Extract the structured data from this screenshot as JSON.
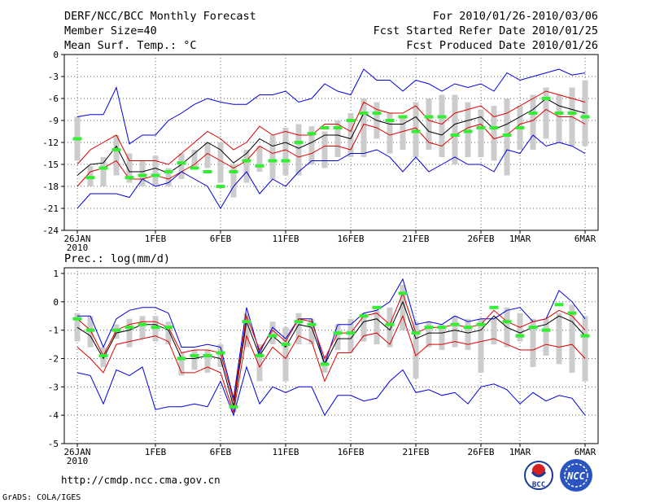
{
  "header": {
    "title": "DERF/NCC/BCC Monthly Forecast",
    "member_size": "Member Size=40",
    "variable": "Mean Surf. Temp.: °C",
    "period": "For 2010/01/26-2010/03/06",
    "started": "Fcst Started Refer Date 2010/01/25",
    "produced": "Fcst Produced Date 2010/01/26"
  },
  "precip_label": "Prec.: log(mm/d)",
  "footer": {
    "url": "http://cmdp.ncc.cma.gov.cn",
    "grads": "GrADS: COLA/IGES",
    "logo_bcc": "BCC",
    "logo_ncc": "NCC"
  },
  "colors": {
    "envelope": "#0000dd",
    "spread": "#dd0000",
    "mean": "#000000",
    "box": "#cccccc",
    "median": "#33ee33"
  },
  "x_axis": {
    "tick_labels": [
      "26JAN",
      "1FEB",
      "6FEB",
      "11FEB",
      "16FEB",
      "21FEB",
      "26FEB",
      "1MAR",
      "6MAR"
    ],
    "tick_days": [
      0,
      6,
      11,
      16,
      21,
      26,
      31,
      34,
      39
    ],
    "year_label": "2010"
  },
  "chart_data": [
    {
      "type": "line",
      "title": "Mean Surf. Temp.: °C",
      "x_days": 40,
      "ylim": [
        -24,
        0
      ],
      "yticks": [
        0,
        -3,
        -6,
        -9,
        -12,
        -15,
        -18,
        -21,
        -24
      ],
      "series": [
        {
          "name": "max",
          "values": [
            -8.5,
            -8.2,
            -8.2,
            -4.5,
            -12.2,
            -11,
            -11,
            -9,
            -8,
            -6.8,
            -6,
            -6.5,
            -6.8,
            -6.8,
            -5.5,
            -5.5,
            -5,
            -6.5,
            -6,
            -4,
            -5,
            -5.5,
            -2,
            -3.5,
            -3.5,
            -5,
            -3.5,
            -4,
            -5,
            -4,
            -4.5,
            -4,
            -5,
            -2.5,
            -3.5,
            -3,
            -2.5,
            -2,
            -2.8,
            -2.5
          ]
        },
        {
          "name": "upper",
          "values": [
            -15,
            -13,
            -12,
            -11,
            -14.5,
            -14.5,
            -14.5,
            -15,
            -13.5,
            -12,
            -10.5,
            -11.5,
            -13,
            -12,
            -9.8,
            -11,
            -10.5,
            -11,
            -11,
            -9.5,
            -9.5,
            -10.5,
            -6.5,
            -7.5,
            -8,
            -8,
            -7,
            -9,
            -9.5,
            -8,
            -7.5,
            -7,
            -8.5,
            -8,
            -7,
            -6,
            -5,
            -5.5,
            -6,
            -6.5
          ]
        },
        {
          "name": "mean",
          "values": [
            -16.5,
            -15,
            -14.8,
            -12.5,
            -16,
            -16,
            -15.5,
            -16.2,
            -15,
            -13.5,
            -12,
            -13,
            -14.8,
            -13.5,
            -11.5,
            -12.5,
            -12,
            -12.8,
            -12,
            -11,
            -11,
            -11.5,
            -8,
            -9,
            -9.5,
            -9.5,
            -8.5,
            -10.5,
            -11,
            -9.5,
            -9,
            -8.5,
            -10.2,
            -9.5,
            -8.5,
            -7.5,
            -6,
            -7,
            -7.5,
            -8
          ]
        },
        {
          "name": "lower",
          "values": [
            -18,
            -16,
            -15.5,
            -14.5,
            -17,
            -17,
            -16.5,
            -17,
            -16,
            -15,
            -13.5,
            -14.5,
            -15.5,
            -14.5,
            -12.5,
            -13.5,
            -13,
            -14,
            -13.5,
            -12.5,
            -12.5,
            -13,
            -9.5,
            -10,
            -11,
            -10.5,
            -10,
            -12,
            -12.5,
            -11,
            -10,
            -9.5,
            -11.5,
            -11,
            -9.5,
            -9,
            -7.5,
            -8.5,
            -8.5,
            -9.5
          ]
        },
        {
          "name": "min",
          "values": [
            -21,
            -19,
            -19,
            -19,
            -19.5,
            -17,
            -18,
            -17.5,
            -16,
            -17,
            -18,
            -21,
            -18,
            -16,
            -19,
            -17,
            -18,
            -16,
            -14.5,
            -14.5,
            -14.5,
            -13.5,
            -13.5,
            -13,
            -14,
            -16,
            -14,
            -16,
            -15,
            -14,
            -15,
            -15,
            -16,
            -13,
            -13.5,
            -11,
            -12.5,
            -12,
            -12.5,
            -13.5
          ]
        }
      ],
      "box_ranges": [
        [
          -8.5,
          -14.5
        ],
        [
          -15.2,
          -18
        ],
        [
          -14,
          -18
        ],
        [
          -11,
          -16.5
        ],
        [
          -13.5,
          -17.5
        ],
        [
          -14.5,
          -18
        ],
        [
          -13.8,
          -18
        ],
        [
          -15.5,
          -18
        ],
        [
          -13.5,
          -17
        ],
        [
          -13,
          -15.5
        ],
        [
          -12,
          -15.5
        ],
        [
          -12,
          -17.5
        ],
        [
          -15,
          -19.5
        ],
        [
          -13,
          -17.5
        ],
        [
          -12.5,
          -16
        ],
        [
          -11,
          -17
        ],
        [
          -10,
          -16.5
        ],
        [
          -9.5,
          -16.5
        ],
        [
          -9.8,
          -15
        ],
        [
          -10.5,
          -15.5
        ],
        [
          -9,
          -14
        ],
        [
          -8,
          -14
        ],
        [
          -6,
          -14
        ],
        [
          -6.5,
          -11.5
        ],
        [
          -8,
          -13.5
        ],
        [
          -8.5,
          -13
        ],
        [
          -6.5,
          -14
        ],
        [
          -6,
          -13
        ],
        [
          -5.5,
          -14
        ],
        [
          -5.5,
          -15
        ],
        [
          -6.5,
          -14
        ],
        [
          -7.5,
          -14
        ],
        [
          -7,
          -14.5
        ],
        [
          -6,
          -16.5
        ],
        [
          -7,
          -13
        ],
        [
          -5.5,
          -13
        ],
        [
          -4.5,
          -11.5
        ],
        [
          -5.5,
          -12
        ],
        [
          -4.5,
          -12.5
        ],
        [
          -3.5,
          -12.5
        ]
      ],
      "medians": [
        -11.5,
        -16.8,
        -15.5,
        -13,
        -16.8,
        -16.5,
        -16.5,
        -16,
        -14.8,
        -15.5,
        -16,
        -18,
        -16,
        -14.5,
        -15.2,
        -14.5,
        -14.5,
        -12,
        -10.8,
        -10,
        -10,
        -9,
        -8,
        -8,
        -9,
        -8.5,
        -10.5,
        -8.5,
        -8.5,
        -11,
        -10.5,
        -10,
        -10,
        -11,
        -10,
        -8,
        -6,
        -8,
        -8,
        -8.5
      ]
    },
    {
      "type": "line",
      "title": "Prec.: log(mm/d)",
      "x_days": 40,
      "ylim": [
        -5,
        1.2
      ],
      "yticks": [
        1,
        0,
        -1,
        -2,
        -3,
        -4,
        -5
      ],
      "series": [
        {
          "name": "max",
          "values": [
            -0.5,
            -0.5,
            -1.6,
            -0.6,
            -0.3,
            -0.2,
            -0.2,
            -0.4,
            -1.6,
            -1.6,
            -1.5,
            -1.6,
            -3.4,
            -0.2,
            -1.8,
            -0.9,
            -1.3,
            -0.6,
            -0.6,
            -2.2,
            -0.8,
            -0.8,
            -0.4,
            -0.3,
            0.0,
            0.8,
            -0.8,
            -0.7,
            -0.8,
            -0.5,
            -0.7,
            -0.6,
            -0.6,
            -0.3,
            -0.2,
            -0.7,
            -0.6,
            0.4,
            0.0,
            -0.6
          ]
        },
        {
          "name": "upper",
          "values": [
            -0.6,
            -1.0,
            -1.9,
            -1.0,
            -0.8,
            -0.7,
            -0.7,
            -0.9,
            -1.8,
            -1.7,
            -1.7,
            -1.8,
            -3.5,
            -0.5,
            -1.7,
            -1.0,
            -1.4,
            -0.6,
            -0.7,
            -2.0,
            -1.1,
            -1.1,
            -0.5,
            -0.4,
            -0.8,
            0.3,
            -1.1,
            -0.9,
            -0.9,
            -0.8,
            -0.9,
            -0.8,
            -0.3,
            -0.7,
            -0.9,
            -0.7,
            -0.6,
            -0.3,
            -0.5,
            -1.0
          ]
        },
        {
          "name": "mean",
          "values": [
            -0.9,
            -1.2,
            -2.0,
            -1.1,
            -1.0,
            -0.8,
            -0.8,
            -1.0,
            -2.0,
            -2.0,
            -1.9,
            -2.0,
            -3.7,
            -0.7,
            -1.9,
            -1.2,
            -1.6,
            -0.8,
            -0.9,
            -2.2,
            -1.3,
            -1.3,
            -0.7,
            -0.6,
            -1.0,
            0.0,
            -1.3,
            -1.1,
            -1.1,
            -1.0,
            -1.1,
            -1.0,
            -0.5,
            -0.9,
            -1.1,
            -0.9,
            -0.8,
            -0.5,
            -0.7,
            -1.2
          ]
        },
        {
          "name": "lower",
          "values": [
            -1.6,
            -2.0,
            -2.5,
            -1.5,
            -1.4,
            -1.3,
            -1.2,
            -1.4,
            -2.5,
            -2.5,
            -2.3,
            -2.5,
            -3.9,
            -1.2,
            -2.3,
            -1.6,
            -2.0,
            -1.2,
            -1.4,
            -2.8,
            -1.8,
            -1.8,
            -1.2,
            -1.1,
            -1.5,
            -0.5,
            -1.9,
            -1.5,
            -1.5,
            -1.4,
            -1.5,
            -1.4,
            -1.3,
            -1.5,
            -1.7,
            -1.7,
            -1.5,
            -1.6,
            -1.5,
            -2.0
          ]
        },
        {
          "name": "min",
          "values": [
            -2.5,
            -2.6,
            -3.6,
            -2.4,
            -2.6,
            -2.3,
            -3.8,
            -3.7,
            -3.7,
            -3.6,
            -3.7,
            -2.8,
            -4.0,
            -2.3,
            -3.6,
            -3.0,
            -3.2,
            -3.0,
            -3.0,
            -4.0,
            -3.3,
            -3.3,
            -3.5,
            -3.4,
            -2.8,
            -2.4,
            -3.2,
            -3.1,
            -3.3,
            -3.2,
            -3.6,
            -3.0,
            -2.9,
            -3.1,
            -3.6,
            -3.2,
            -3.5,
            -3.3,
            -3.4,
            -4.0
          ]
        }
      ],
      "box_ranges": [
        [
          -0.4,
          -1.4
        ],
        [
          -0.5,
          -1.6
        ],
        [
          -1.6,
          -2.3
        ],
        [
          -0.8,
          -1.3
        ],
        [
          -0.6,
          -1.6
        ],
        [
          -0.5,
          -1.3
        ],
        [
          -0.5,
          -1.4
        ],
        [
          -0.7,
          -1.5
        ],
        [
          -1.8,
          -2.6
        ],
        [
          -1.7,
          -2.4
        ],
        [
          -1.7,
          -2.5
        ],
        [
          -1.5,
          -2.3
        ],
        [
          -3.3,
          -3.9
        ],
        [
          -0.4,
          -1.6
        ],
        [
          -1.5,
          -2.8
        ],
        [
          -0.7,
          -1.5
        ],
        [
          -0.9,
          -2.8
        ],
        [
          -0.4,
          -1.5
        ],
        [
          -0.6,
          -1.5
        ],
        [
          -1.9,
          -2.5
        ],
        [
          -0.8,
          -1.7
        ],
        [
          -0.6,
          -1.8
        ],
        [
          -0.4,
          -1.4
        ],
        [
          -0.3,
          -1.5
        ],
        [
          -0.2,
          -1.6
        ],
        [
          0.6,
          -1.0
        ],
        [
          -0.7,
          -2.7
        ],
        [
          -0.7,
          -1.6
        ],
        [
          -0.8,
          -1.7
        ],
        [
          -0.5,
          -1.6
        ],
        [
          -0.6,
          -1.7
        ],
        [
          -0.6,
          -2.5
        ],
        [
          -0.6,
          -1.5
        ],
        [
          -0.2,
          -1.6
        ],
        [
          -0.4,
          -1.4
        ],
        [
          -0.6,
          -2.3
        ],
        [
          -0.6,
          -1.9
        ],
        [
          -0.4,
          -2.2
        ],
        [
          -0.1,
          -2.5
        ],
        [
          -0.5,
          -2.8
        ]
      ],
      "medians": [
        -0.6,
        -1.0,
        -1.9,
        -1.0,
        -0.9,
        -0.8,
        -0.9,
        -0.9,
        -2.0,
        -1.9,
        -1.9,
        -1.8,
        -3.7,
        -0.7,
        -1.9,
        -1.2,
        -1.5,
        -0.7,
        -0.8,
        -2.2,
        -1.1,
        -1.1,
        -0.5,
        -0.2,
        -0.8,
        0.3,
        -1.1,
        -0.9,
        -0.9,
        -0.8,
        -0.9,
        -0.8,
        -0.2,
        -0.7,
        -1.2,
        -0.9,
        -1.0,
        -0.1,
        -0.4,
        -1.2
      ]
    }
  ]
}
